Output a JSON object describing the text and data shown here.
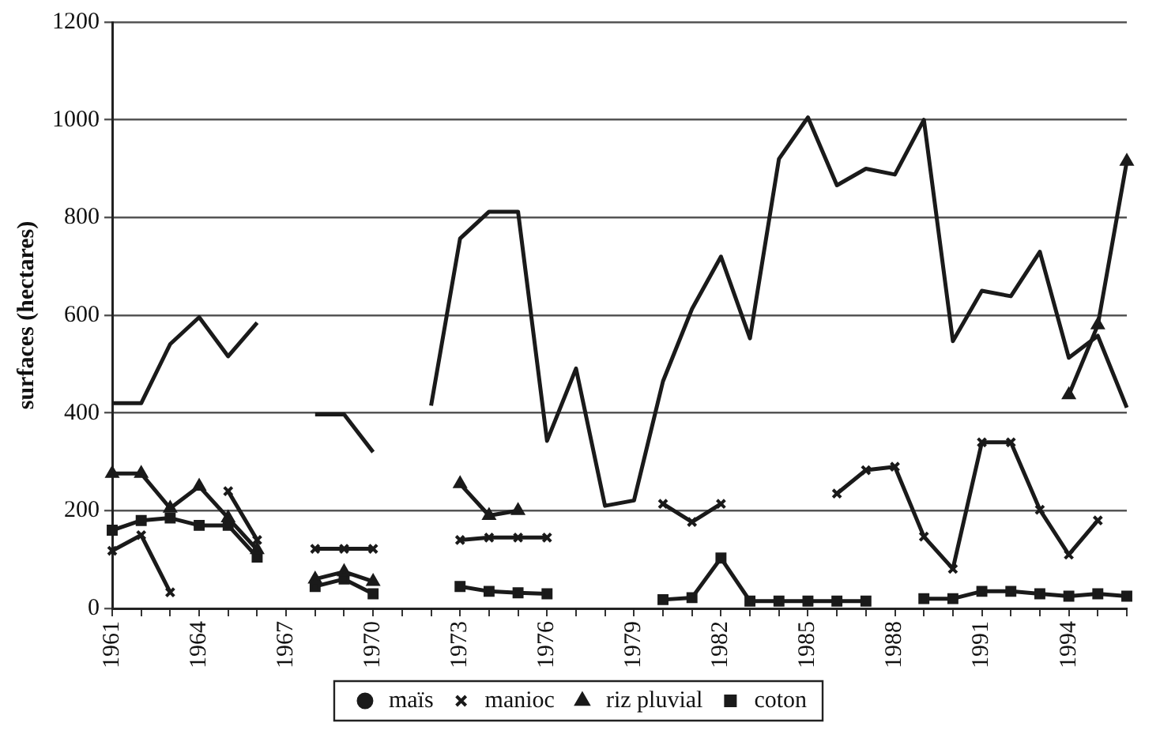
{
  "chart_data": {
    "type": "line",
    "ylabel": "surfaces (hectares)",
    "categories": [
      "1961",
      null,
      null,
      "1964",
      null,
      null,
      "1967",
      null,
      null,
      "1970",
      null,
      null,
      "1973",
      null,
      null,
      "1976",
      null,
      null,
      "1979",
      null,
      null,
      "1982",
      null,
      null,
      "1985",
      null,
      null,
      "1988",
      null,
      null,
      "1991",
      null,
      null,
      "1994",
      null,
      null
    ],
    "series": [
      {
        "name": "maïs",
        "color": "#1a1a1a",
        "marker": "none",
        "values": [
          420,
          420,
          541,
          596,
          516,
          585,
          null,
          397,
          397,
          320,
          null,
          415,
          757,
          812,
          812,
          343,
          491,
          210,
          221,
          465,
          613,
          720,
          553,
          920,
          1005,
          866,
          900,
          888,
          1000,
          547,
          650,
          639,
          730,
          513,
          558,
          411
        ]
      },
      {
        "name": "manioc",
        "color": "#1a1a1a",
        "marker": "cross",
        "values": [
          118,
          150,
          33,
          null,
          240,
          140,
          null,
          122,
          122,
          122,
          null,
          null,
          140,
          145,
          145,
          145,
          null,
          null,
          null,
          214,
          177,
          214,
          null,
          null,
          null,
          235,
          283,
          290,
          147,
          81,
          340,
          340,
          202,
          110,
          180,
          null
        ]
      },
      {
        "name": "riz pluvial",
        "color": "#1a1a1a",
        "marker": "triangle",
        "values": [
          276,
          276,
          205,
          250,
          185,
          120,
          null,
          60,
          75,
          55,
          null,
          null,
          255,
          190,
          200,
          null,
          null,
          null,
          null,
          null,
          null,
          null,
          null,
          null,
          null,
          null,
          null,
          null,
          null,
          null,
          null,
          null,
          null,
          437,
          580,
          915
        ]
      },
      {
        "name": "coton",
        "color": "#1a1a1a",
        "marker": "square",
        "values": [
          160,
          180,
          185,
          170,
          170,
          105,
          null,
          45,
          60,
          30,
          null,
          null,
          45,
          35,
          32,
          30,
          null,
          null,
          null,
          18,
          22,
          103,
          15,
          15,
          15,
          15,
          15,
          null,
          20,
          20,
          35,
          35,
          30,
          25,
          30,
          25
        ]
      }
    ],
    "ylim": [
      0,
      1200
    ],
    "yticks": [
      0,
      200,
      400,
      600,
      800,
      1000,
      1200
    ],
    "grid": "y",
    "legend": "bottom"
  }
}
